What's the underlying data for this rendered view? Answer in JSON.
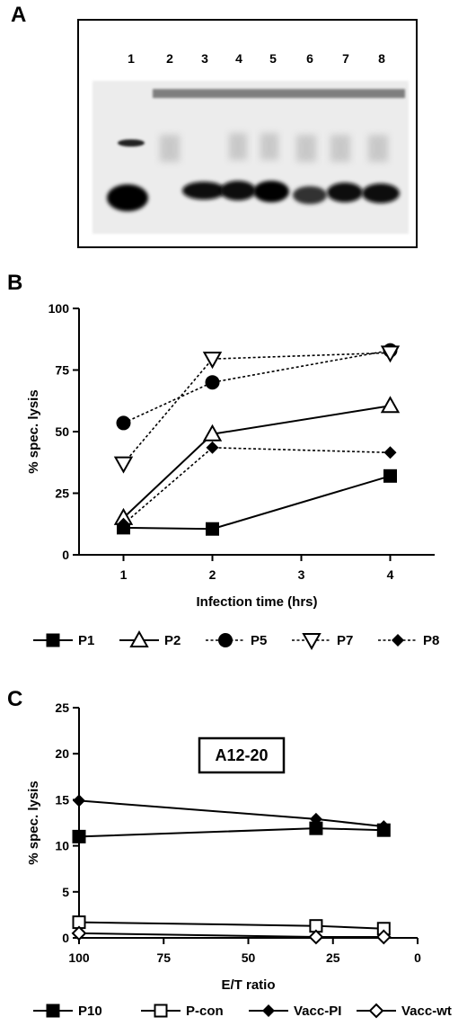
{
  "panels": {
    "A": {
      "letter": "A",
      "lanes": [
        "1",
        "2",
        "3",
        "4",
        "5",
        "6",
        "7",
        "8"
      ]
    },
    "B": {
      "letter": "B"
    },
    "C": {
      "letter": "C",
      "boxed_label": "A12-20"
    }
  },
  "chart_data": [
    {
      "type": "line",
      "panel": "B",
      "xlabel": "Infection time (hrs)",
      "ylabel": "% spec. lysis",
      "x_ticks": [
        "1",
        "2",
        "3",
        "4"
      ],
      "y_ticks": [
        "0",
        "25",
        "50",
        "75",
        "100"
      ],
      "xlim": [
        0.5,
        4.5
      ],
      "ylim": [
        0,
        100
      ],
      "grid": false,
      "legend_position": "bottom",
      "series": [
        {
          "name": "P1",
          "marker": "square-filled",
          "line": "solid",
          "x": [
            1,
            2,
            4
          ],
          "y": [
            11,
            10.5,
            32
          ]
        },
        {
          "name": "P2",
          "marker": "triangle-open",
          "line": "solid",
          "x": [
            1,
            2,
            4
          ],
          "y": [
            15,
            49,
            60.5
          ]
        },
        {
          "name": "P5",
          "marker": "circle-filled",
          "line": "dotted",
          "x": [
            1,
            2,
            4
          ],
          "y": [
            53.5,
            70,
            83
          ]
        },
        {
          "name": "P7",
          "marker": "triangle-down-open",
          "line": "dotted",
          "x": [
            1,
            2,
            4
          ],
          "y": [
            37,
            79.5,
            82
          ]
        },
        {
          "name": "P8",
          "marker": "diamond-filled",
          "line": "dotted",
          "x": [
            1,
            2,
            4
          ],
          "y": [
            12.5,
            43.5,
            41.5
          ]
        }
      ]
    },
    {
      "type": "line",
      "panel": "C",
      "xlabel": "E/T ratio",
      "ylabel": "% spec. lysis",
      "x_ticks": [
        "100",
        "75",
        "50",
        "25",
        "0"
      ],
      "y_ticks": [
        "0",
        "5",
        "10",
        "15",
        "20",
        "25"
      ],
      "xlim": [
        100,
        0
      ],
      "x_reversed": true,
      "ylim": [
        0,
        25
      ],
      "grid": false,
      "legend_position": "bottom",
      "series": [
        {
          "name": "P10",
          "marker": "square-filled",
          "line": "solid",
          "x": [
            100,
            30,
            10
          ],
          "y": [
            11,
            11.9,
            11.7
          ]
        },
        {
          "name": "P-con",
          "marker": "square-open",
          "line": "solid",
          "x": [
            100,
            30,
            10
          ],
          "y": [
            1.7,
            1.3,
            1.0
          ]
        },
        {
          "name": "Vacc-PI",
          "marker": "diamond-filled",
          "line": "solid",
          "x": [
            100,
            30,
            10
          ],
          "y": [
            14.9,
            12.9,
            12.1
          ]
        },
        {
          "name": "Vacc-wt",
          "marker": "diamond-open",
          "line": "solid",
          "x": [
            100,
            30,
            10
          ],
          "y": [
            0.5,
            0.1,
            0.1
          ]
        }
      ]
    }
  ]
}
